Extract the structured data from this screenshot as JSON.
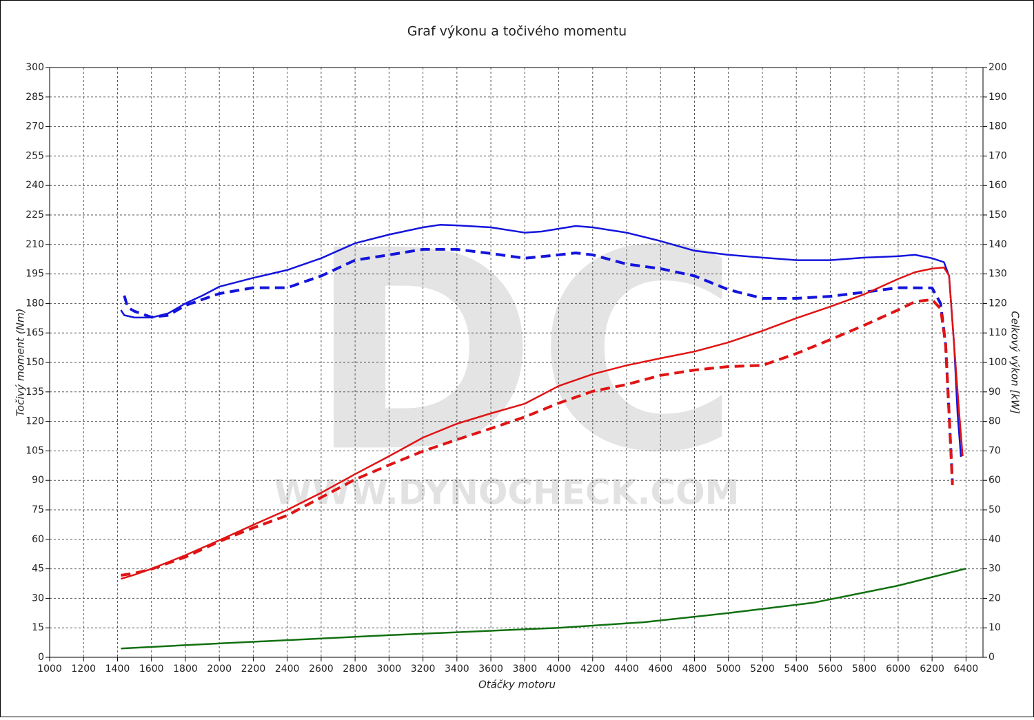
{
  "chart_data": {
    "type": "line",
    "title": "Graf výkonu a točivého momentu",
    "x_label": "Otáčky motoru",
    "y_label": "Točivý moment (Nm)",
    "y2_label": "Celkový výkon [kW]",
    "watermark": "DC",
    "watermark_url": "WWW.DYNOCHECK.COM",
    "xlim": [
      1000,
      6500
    ],
    "xticks": [
      1000,
      1200,
      1400,
      1600,
      1800,
      2000,
      2200,
      2400,
      2600,
      2800,
      3000,
      3200,
      3400,
      3600,
      3800,
      4000,
      4200,
      4400,
      4600,
      4800,
      5000,
      5200,
      5400,
      5600,
      5800,
      6000,
      6200,
      6400
    ],
    "ylim": [
      0,
      300
    ],
    "yticks": [
      0,
      15,
      30,
      45,
      60,
      75,
      90,
      105,
      120,
      135,
      150,
      165,
      180,
      195,
      210,
      225,
      240,
      255,
      270,
      285,
      300
    ],
    "y2lim": [
      0,
      200
    ],
    "y2ticks": [
      0,
      10,
      20,
      30,
      40,
      50,
      60,
      70,
      80,
      90,
      100,
      110,
      120,
      130,
      140,
      150,
      160,
      170,
      180,
      190,
      200
    ],
    "grid": true,
    "series": [
      {
        "color": "#1414dc",
        "line_style": "solid",
        "x": [
          1420,
          1440,
          1500,
          1600,
          1700,
          1800,
          1900,
          2000,
          2200,
          2400,
          2600,
          2800,
          3000,
          3200,
          3300,
          3400,
          3600,
          3800,
          3900,
          4000,
          4100,
          4200,
          4400,
          4600,
          4800,
          5000,
          5200,
          5400,
          5600,
          5800,
          6000,
          6100,
          6200,
          6270,
          6300,
          6330,
          6350,
          6370
        ],
        "values": [
          176.6,
          174,
          172.8,
          172.8,
          175,
          180,
          184,
          188.5,
          193,
          197,
          203,
          210.6,
          215,
          218.7,
          220,
          219.7,
          218.7,
          216,
          216.6,
          218,
          219.4,
          218.7,
          216,
          211.7,
          206.8,
          204.7,
          203.3,
          202,
          202,
          203.3,
          204,
          204.7,
          203,
          201,
          194,
          159,
          124,
          102
        ]
      },
      {
        "color": "#1414dc",
        "line_style": "dashed",
        "x": [
          1440,
          1460,
          1500,
          1600,
          1700,
          1800,
          2000,
          2200,
          2400,
          2600,
          2800,
          3000,
          3200,
          3400,
          3600,
          3800,
          4000,
          4100,
          4200,
          4400,
          4600,
          4800,
          5000,
          5200,
          5400,
          5600,
          5800,
          6000,
          6200,
          6250,
          6280,
          6300,
          6320
        ],
        "values": [
          184,
          178,
          176,
          173,
          174,
          179,
          185,
          188,
          188,
          194,
          202,
          204.7,
          207.5,
          207.5,
          205.4,
          203,
          204.7,
          205.7,
          204.7,
          200,
          197.7,
          194,
          187,
          182.6,
          182.6,
          183.6,
          185.7,
          188,
          187.9,
          180,
          159,
          124,
          89
        ]
      },
      {
        "color": "#e01414",
        "line_style": "solid",
        "axis": "y2",
        "x": [
          1420,
          1500,
          1600,
          1800,
          2000,
          2200,
          2400,
          2600,
          2800,
          3000,
          3200,
          3400,
          3600,
          3800,
          4000,
          4200,
          4400,
          4600,
          4800,
          5000,
          5200,
          5400,
          5600,
          5800,
          6000,
          6100,
          6200,
          6270,
          6300,
          6330,
          6360,
          6380
        ],
        "values": [
          26.6,
          28,
          30,
          34.6,
          39.7,
          44.9,
          50,
          55.8,
          62.1,
          68.2,
          74.5,
          79.2,
          82.7,
          86,
          92,
          96,
          99,
          101.4,
          103.7,
          106.8,
          110.7,
          115,
          118.9,
          123.1,
          128.3,
          130.6,
          131.8,
          132.2,
          129.4,
          106,
          82.7,
          68.2
        ]
      },
      {
        "color": "#e01414",
        "line_style": "dashed",
        "axis": "y2",
        "x": [
          1420,
          1500,
          1600,
          1800,
          2000,
          2200,
          2400,
          2600,
          2800,
          3000,
          3200,
          3400,
          3600,
          3800,
          4000,
          4200,
          4400,
          4600,
          4800,
          5000,
          5200,
          5400,
          5600,
          5800,
          6000,
          6100,
          6200,
          6250,
          6280,
          6300,
          6320
        ],
        "values": [
          27.8,
          28.5,
          29.9,
          34,
          39.3,
          43.9,
          48.1,
          54.2,
          60.3,
          65.2,
          69.9,
          73.8,
          77.6,
          81.5,
          86.2,
          90.2,
          92.5,
          95.6,
          97.4,
          98.6,
          99,
          103,
          107.7,
          112.6,
          117.8,
          120.6,
          121.3,
          118.2,
          106,
          82.7,
          58.4
        ]
      },
      {
        "color": "#107010",
        "line_style": "solid",
        "axis": "y2",
        "x": [
          1420,
          2000,
          3000,
          4000,
          4500,
          5000,
          5500,
          6000,
          6400
        ],
        "values": [
          3,
          4.7,
          7.5,
          10,
          11.9,
          15,
          18.5,
          24.3,
          30.1
        ]
      }
    ]
  }
}
